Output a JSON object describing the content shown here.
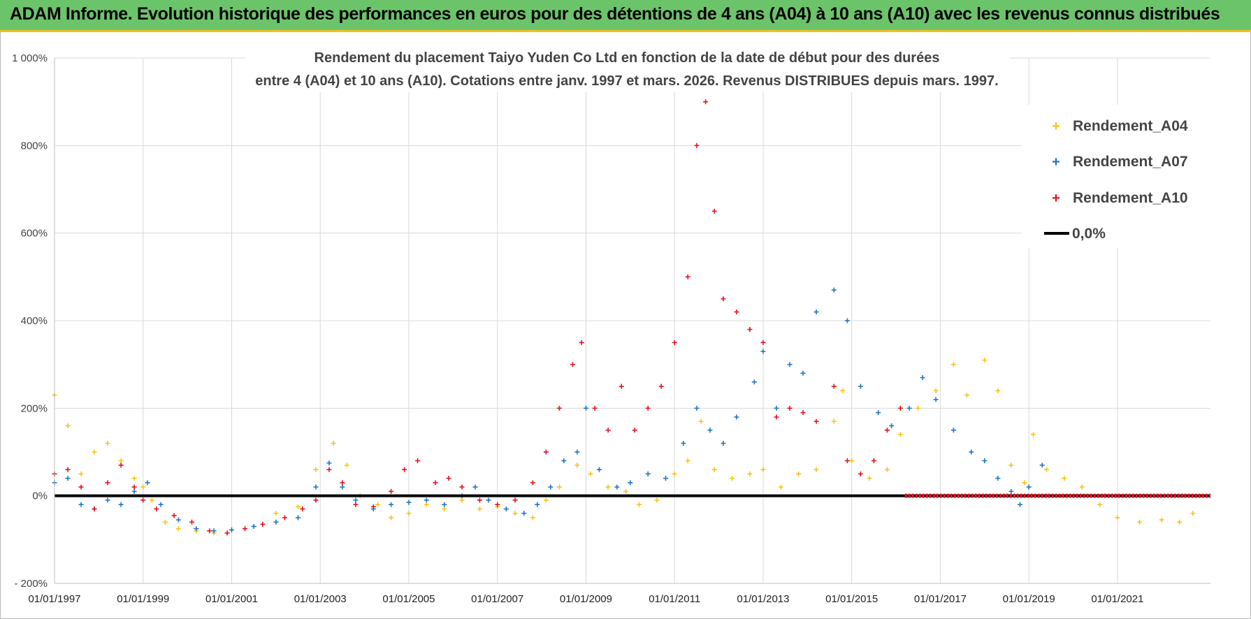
{
  "header": {
    "title": "ADAM Informe. Evolution historique des performances en euros pour des détentions de 4 ans (A04) à 10 ans (A10) avec les revenus connus distribués"
  },
  "chart_data": {
    "type": "scatter",
    "title_line1": "Rendement du placement Taiyo Yuden Co Ltd en fonction de la date de début pour des durées",
    "title_line2": "entre 4 (A04) et 10 ans (A10). Cotations entre janv. 1997 et mars. 2026. Revenus DISTRIBUES depuis mars. 1997.",
    "xlabel": "",
    "ylabel": "",
    "x_range": [
      1997.0,
      2023.1
    ],
    "ylim": [
      -200,
      1000
    ],
    "y_ticks": [
      -200,
      0,
      200,
      400,
      600,
      800,
      1000
    ],
    "y_tick_labels": [
      "- 200%",
      "0%",
      "200%",
      "400%",
      "600%",
      "800%",
      "1 000%"
    ],
    "x_ticks": [
      1997,
      1999,
      2001,
      2003,
      2005,
      2007,
      2009,
      2011,
      2013,
      2015,
      2017,
      2019,
      2021
    ],
    "x_tick_labels": [
      "01/01/1997",
      "01/01/1999",
      "01/01/2001",
      "01/01/2003",
      "01/01/2005",
      "01/01/2007",
      "01/01/2009",
      "01/01/2011",
      "01/01/2013",
      "01/01/2015",
      "01/01/2017",
      "01/01/2019",
      "01/01/2021"
    ],
    "legend_position": "right",
    "series": [
      {
        "name": "Rendement_A04",
        "color": "#f5c518",
        "marker": "+",
        "points": [
          [
            1997.0,
            230
          ],
          [
            1997.3,
            160
          ],
          [
            1997.6,
            50
          ],
          [
            1997.9,
            100
          ],
          [
            1998.2,
            120
          ],
          [
            1998.5,
            80
          ],
          [
            1998.8,
            40
          ],
          [
            1999.0,
            20
          ],
          [
            1999.2,
            -10
          ],
          [
            1999.5,
            -60
          ],
          [
            1999.8,
            -75
          ],
          [
            2000.2,
            -80
          ],
          [
            2000.6,
            -85
          ],
          [
            2001.0,
            -78
          ],
          [
            2001.5,
            -70
          ],
          [
            2002.0,
            -40
          ],
          [
            2002.5,
            -25
          ],
          [
            2002.9,
            60
          ],
          [
            2003.3,
            120
          ],
          [
            2003.6,
            70
          ],
          [
            2003.9,
            0
          ],
          [
            2004.3,
            -20
          ],
          [
            2004.6,
            -50
          ],
          [
            2005.0,
            -40
          ],
          [
            2005.4,
            -20
          ],
          [
            2005.8,
            -30
          ],
          [
            2006.2,
            -10
          ],
          [
            2006.6,
            -30
          ],
          [
            2007.0,
            -25
          ],
          [
            2007.4,
            -40
          ],
          [
            2007.8,
            -50
          ],
          [
            2008.1,
            -10
          ],
          [
            2008.4,
            20
          ],
          [
            2008.8,
            70
          ],
          [
            2009.1,
            50
          ],
          [
            2009.5,
            20
          ],
          [
            2009.9,
            10
          ],
          [
            2010.2,
            -20
          ],
          [
            2010.6,
            -10
          ],
          [
            2011.0,
            50
          ],
          [
            2011.3,
            80
          ],
          [
            2011.6,
            170
          ],
          [
            2011.9,
            60
          ],
          [
            2012.3,
            40
          ],
          [
            2012.7,
            50
          ],
          [
            2013.0,
            60
          ],
          [
            2013.4,
            20
          ],
          [
            2013.8,
            50
          ],
          [
            2014.2,
            60
          ],
          [
            2014.6,
            170
          ],
          [
            2014.8,
            240
          ],
          [
            2015.0,
            80
          ],
          [
            2015.4,
            40
          ],
          [
            2015.8,
            60
          ],
          [
            2016.1,
            140
          ],
          [
            2016.5,
            200
          ],
          [
            2016.9,
            240
          ],
          [
            2017.3,
            300
          ],
          [
            2017.6,
            230
          ],
          [
            2018.0,
            310
          ],
          [
            2018.3,
            240
          ],
          [
            2018.6,
            70
          ],
          [
            2018.9,
            30
          ],
          [
            2019.1,
            140
          ],
          [
            2019.4,
            60
          ],
          [
            2019.8,
            40
          ],
          [
            2020.2,
            20
          ],
          [
            2020.6,
            -20
          ],
          [
            2021.0,
            -50
          ],
          [
            2021.5,
            -60
          ],
          [
            2022.0,
            -55
          ],
          [
            2022.4,
            -60
          ],
          [
            2022.7,
            -40
          ]
        ]
      },
      {
        "name": "Rendement_A07",
        "color": "#1f77c8",
        "marker": "+",
        "points": [
          [
            1997.0,
            30
          ],
          [
            1997.3,
            40
          ],
          [
            1997.6,
            -20
          ],
          [
            1997.9,
            -30
          ],
          [
            1998.2,
            -10
          ],
          [
            1998.5,
            -20
          ],
          [
            1998.8,
            10
          ],
          [
            1999.1,
            30
          ],
          [
            1999.4,
            -20
          ],
          [
            1999.8,
            -55
          ],
          [
            2000.2,
            -75
          ],
          [
            2000.6,
            -80
          ],
          [
            2001.0,
            -78
          ],
          [
            2001.5,
            -70
          ],
          [
            2002.0,
            -60
          ],
          [
            2002.5,
            -50
          ],
          [
            2002.9,
            20
          ],
          [
            2003.2,
            75
          ],
          [
            2003.5,
            20
          ],
          [
            2003.8,
            -10
          ],
          [
            2004.2,
            -30
          ],
          [
            2004.6,
            -20
          ],
          [
            2005.0,
            -15
          ],
          [
            2005.4,
            -10
          ],
          [
            2005.8,
            -20
          ],
          [
            2006.2,
            0
          ],
          [
            2006.5,
            20
          ],
          [
            2006.8,
            -10
          ],
          [
            2007.2,
            -30
          ],
          [
            2007.6,
            -40
          ],
          [
            2007.9,
            -20
          ],
          [
            2008.2,
            20
          ],
          [
            2008.5,
            80
          ],
          [
            2008.8,
            100
          ],
          [
            2009.0,
            200
          ],
          [
            2009.3,
            60
          ],
          [
            2009.7,
            20
          ],
          [
            2010.0,
            30
          ],
          [
            2010.4,
            50
          ],
          [
            2010.8,
            40
          ],
          [
            2011.2,
            120
          ],
          [
            2011.5,
            200
          ],
          [
            2011.8,
            150
          ],
          [
            2012.1,
            120
          ],
          [
            2012.4,
            180
          ],
          [
            2012.8,
            260
          ],
          [
            2013.0,
            330
          ],
          [
            2013.3,
            200
          ],
          [
            2013.6,
            300
          ],
          [
            2013.9,
            280
          ],
          [
            2014.2,
            420
          ],
          [
            2014.6,
            470
          ],
          [
            2014.9,
            400
          ],
          [
            2015.2,
            250
          ],
          [
            2015.6,
            190
          ],
          [
            2015.9,
            160
          ],
          [
            2016.3,
            200
          ],
          [
            2016.6,
            270
          ],
          [
            2016.9,
            220
          ],
          [
            2017.3,
            150
          ],
          [
            2017.7,
            100
          ],
          [
            2018.0,
            80
          ],
          [
            2018.3,
            40
          ],
          [
            2018.6,
            10
          ],
          [
            2018.8,
            -20
          ],
          [
            2019.0,
            20
          ],
          [
            2019.3,
            70
          ]
        ]
      },
      {
        "name": "Rendement_A10",
        "color": "#e8101e",
        "marker": "+",
        "points": [
          [
            1997.0,
            50
          ],
          [
            1997.3,
            60
          ],
          [
            1997.6,
            20
          ],
          [
            1997.9,
            -30
          ],
          [
            1998.2,
            30
          ],
          [
            1998.5,
            70
          ],
          [
            1998.8,
            20
          ],
          [
            1999.0,
            -10
          ],
          [
            1999.3,
            -30
          ],
          [
            1999.7,
            -45
          ],
          [
            2000.1,
            -60
          ],
          [
            2000.5,
            -80
          ],
          [
            2000.9,
            -85
          ],
          [
            2001.3,
            -75
          ],
          [
            2001.7,
            -65
          ],
          [
            2002.2,
            -50
          ],
          [
            2002.6,
            -30
          ],
          [
            2002.9,
            -10
          ],
          [
            2003.2,
            60
          ],
          [
            2003.5,
            30
          ],
          [
            2003.8,
            -20
          ],
          [
            2004.2,
            -25
          ],
          [
            2004.6,
            10
          ],
          [
            2004.9,
            60
          ],
          [
            2005.2,
            80
          ],
          [
            2005.6,
            30
          ],
          [
            2005.9,
            40
          ],
          [
            2006.2,
            20
          ],
          [
            2006.6,
            -10
          ],
          [
            2007.0,
            -20
          ],
          [
            2007.4,
            -10
          ],
          [
            2007.8,
            30
          ],
          [
            2008.1,
            100
          ],
          [
            2008.4,
            200
          ],
          [
            2008.7,
            300
          ],
          [
            2008.9,
            350
          ],
          [
            2009.2,
            200
          ],
          [
            2009.5,
            150
          ],
          [
            2009.8,
            250
          ],
          [
            2010.1,
            150
          ],
          [
            2010.4,
            200
          ],
          [
            2010.7,
            250
          ],
          [
            2011.0,
            350
          ],
          [
            2011.3,
            500
          ],
          [
            2011.5,
            800
          ],
          [
            2011.7,
            900
          ],
          [
            2011.9,
            650
          ],
          [
            2012.1,
            450
          ],
          [
            2012.4,
            420
          ],
          [
            2012.7,
            380
          ],
          [
            2013.0,
            350
          ],
          [
            2013.3,
            180
          ],
          [
            2013.6,
            200
          ],
          [
            2013.9,
            190
          ],
          [
            2014.2,
            170
          ],
          [
            2014.6,
            250
          ],
          [
            2014.9,
            80
          ],
          [
            2015.2,
            50
          ],
          [
            2015.5,
            80
          ],
          [
            2015.8,
            150
          ],
          [
            2016.1,
            200
          ]
        ]
      },
      {
        "name": "0,0%",
        "color": "#000000",
        "marker": "line",
        "points": [
          [
            1997.0,
            0
          ],
          [
            2023.1,
            0
          ]
        ]
      }
    ],
    "a10_zero_band_x": [
      2016.2,
      2023.1
    ]
  }
}
